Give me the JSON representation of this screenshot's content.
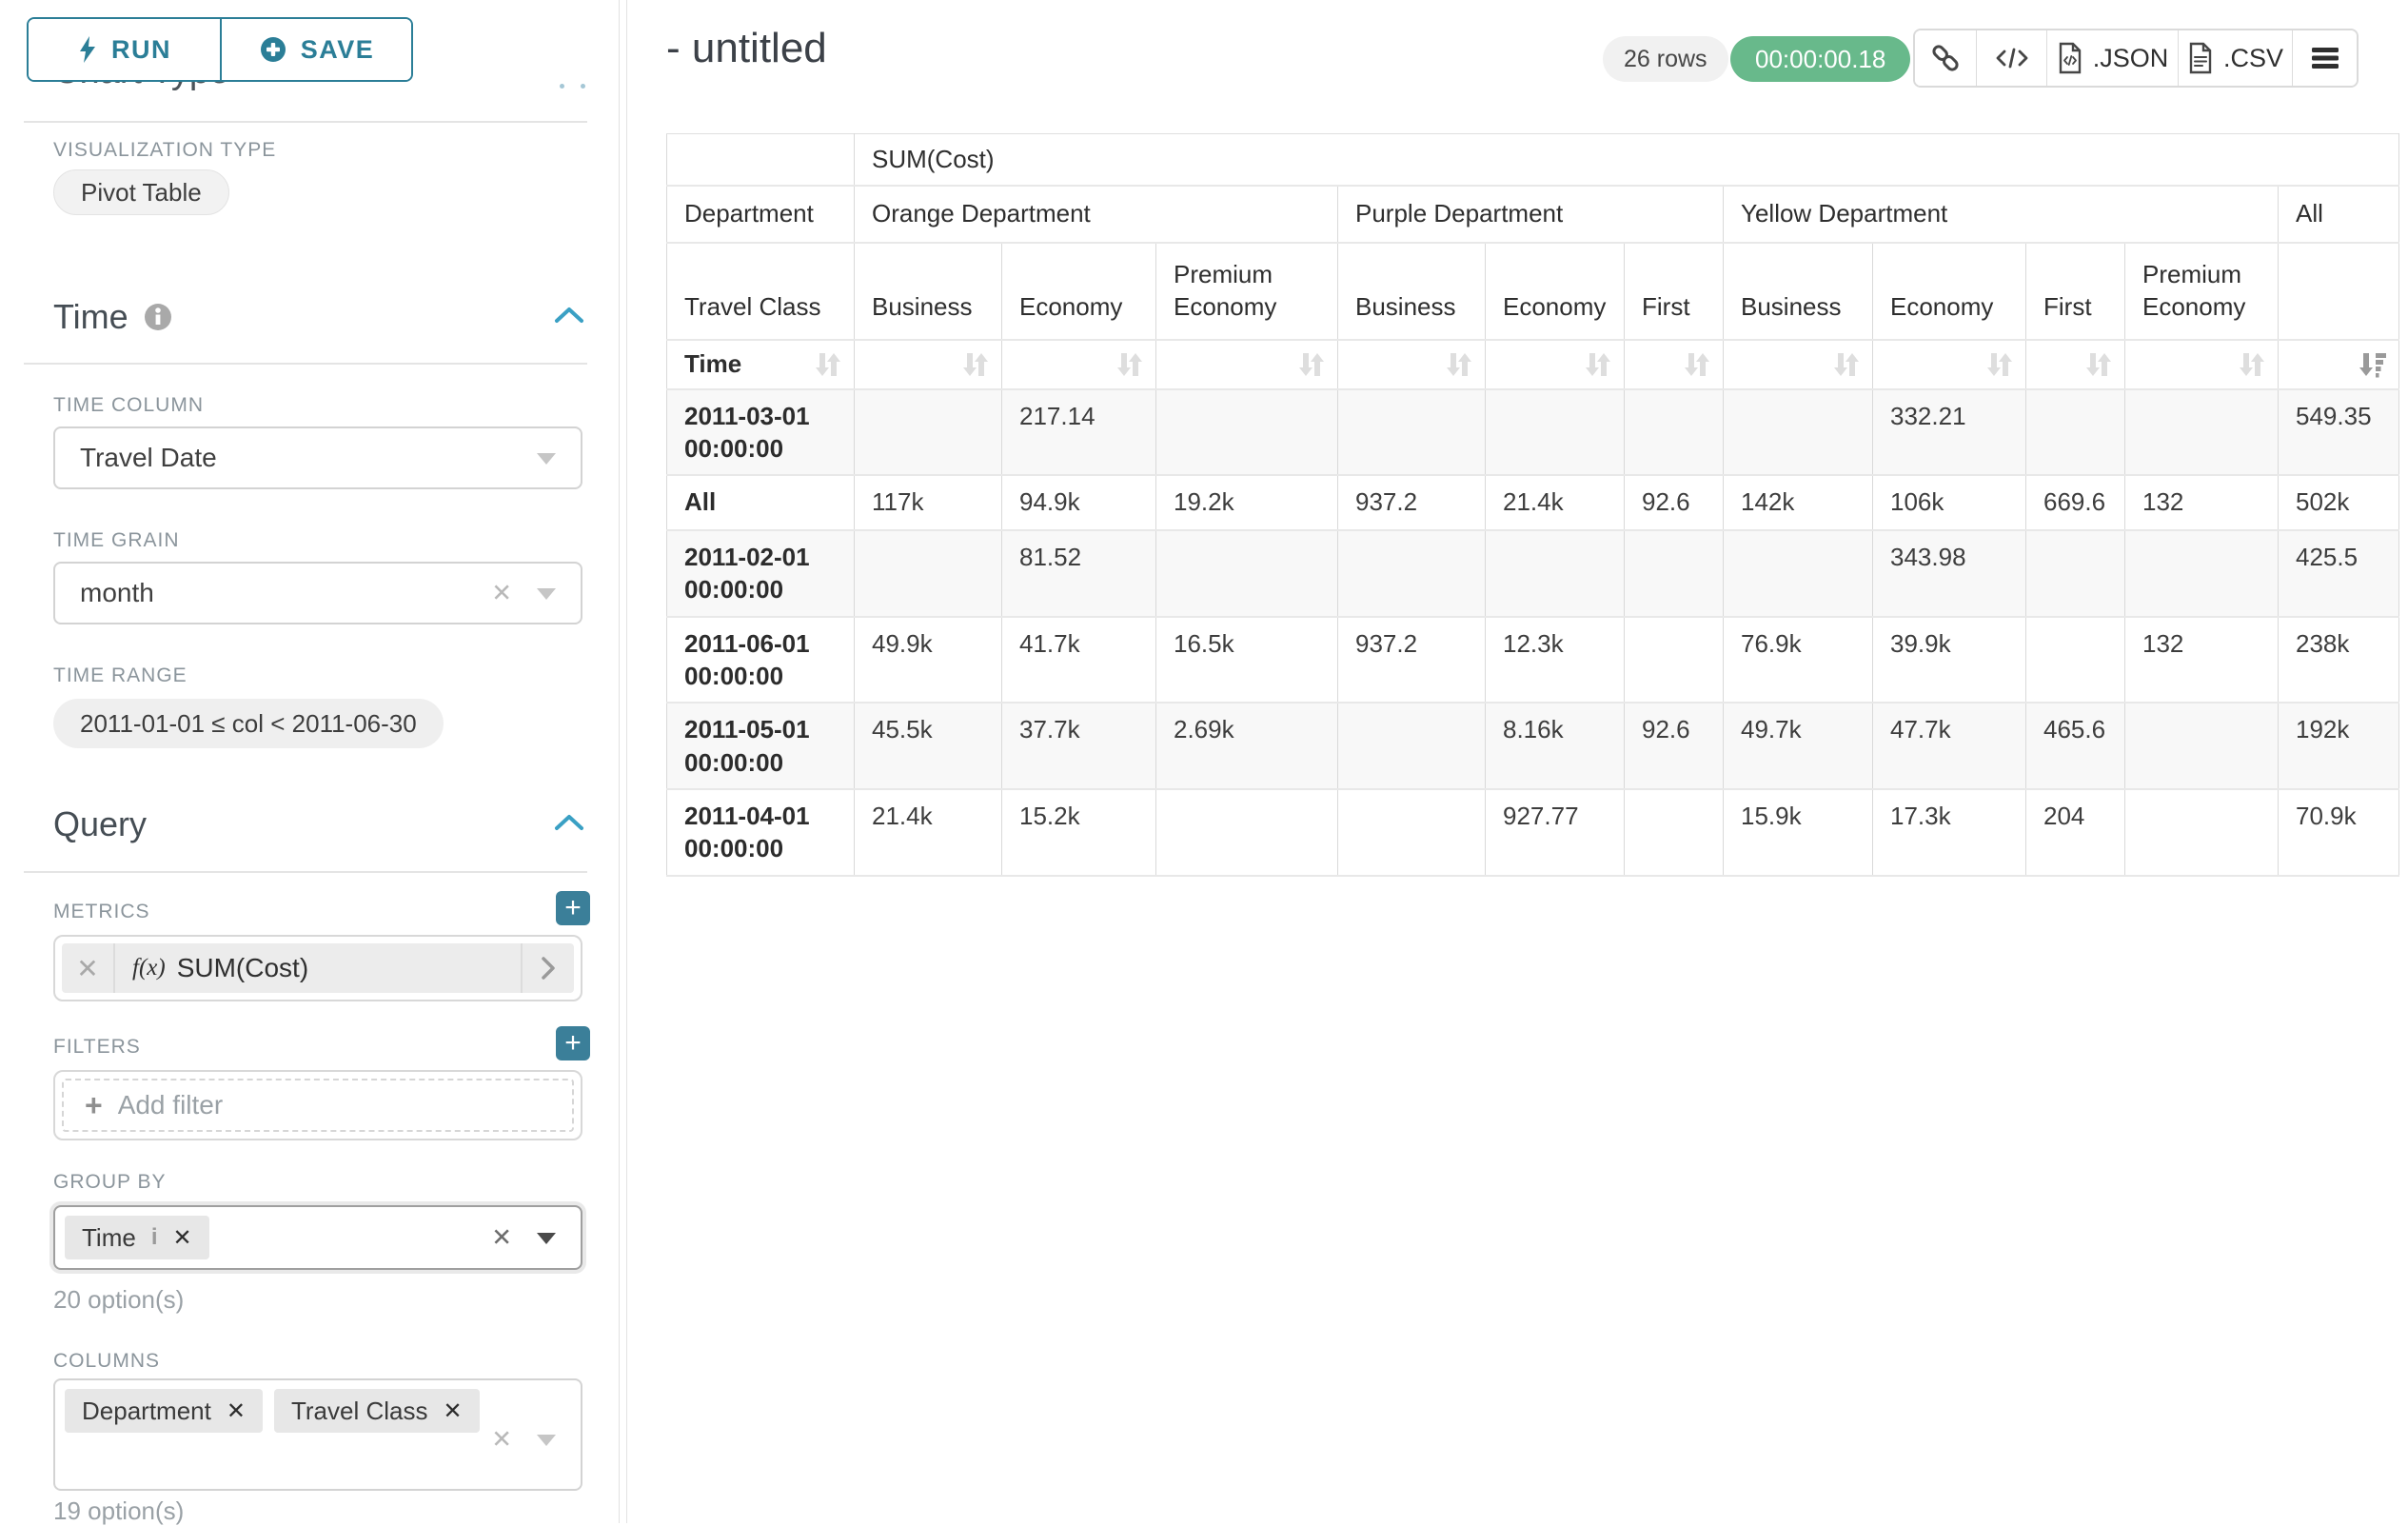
{
  "panel": {
    "run_label": "RUN",
    "save_label": "SAVE",
    "chart_type_title": "Chart Type",
    "viz_label": "VISUALIZATION TYPE",
    "viz_value": "Pivot Table",
    "time": {
      "title": "Time",
      "time_column_label": "TIME COLUMN",
      "time_column_value": "Travel Date",
      "time_grain_label": "TIME GRAIN",
      "time_grain_value": "month",
      "time_range_label": "TIME RANGE",
      "time_range_value": "2011-01-01 ≤ col < 2011-06-30"
    },
    "query": {
      "title": "Query",
      "metrics_label": "METRICS",
      "metric_fx": "f(x)",
      "metric_value": "SUM(Cost)",
      "filters_label": "FILTERS",
      "add_filter_label": "Add filter",
      "group_by": {
        "label": "GROUP BY",
        "tags": [
          {
            "label": "Time",
            "has_info": true
          }
        ],
        "options_text": "20 option(s)"
      },
      "columns": {
        "label": "COLUMNS",
        "tags": [
          {
            "label": "Department"
          },
          {
            "label": "Travel Class"
          }
        ],
        "options_text": "19 option(s)"
      }
    }
  },
  "header": {
    "title": "- untitled",
    "rows_badge": "26 rows",
    "duration_badge": "00:00:00.18",
    "export_json_label": ".JSON",
    "export_csv_label": ".CSV"
  },
  "table": {
    "metric_header": "SUM(Cost)",
    "corner_labels": {
      "department": "Department",
      "travel_class": "Travel Class",
      "time": "Time"
    },
    "department_groups": [
      {
        "label": "Orange Department",
        "span": 3
      },
      {
        "label": "Purple Department",
        "span": 3
      },
      {
        "label": "Yellow Department",
        "span": 4
      },
      {
        "label": "All",
        "span": 1
      }
    ],
    "travel_class_columns": [
      "Business",
      "Economy",
      "Premium Economy",
      "Business",
      "Economy",
      "First",
      "Business",
      "Economy",
      "First",
      "Premium Economy",
      ""
    ],
    "sort": {
      "column": "All",
      "direction": "desc"
    },
    "rows": [
      {
        "label": "2011-03-01 00:00:00",
        "values": [
          "",
          "217.14",
          "",
          "",
          "",
          "",
          "",
          "332.21",
          "",
          "",
          "549.35"
        ]
      },
      {
        "label": "All",
        "values": [
          "117k",
          "94.9k",
          "19.2k",
          "937.2",
          "21.4k",
          "92.6",
          "142k",
          "106k",
          "669.6",
          "132",
          "502k"
        ]
      },
      {
        "label": "2011-02-01 00:00:00",
        "values": [
          "",
          "81.52",
          "",
          "",
          "",
          "",
          "",
          "343.98",
          "",
          "",
          "425.5"
        ]
      },
      {
        "label": "2011-06-01 00:00:00",
        "values": [
          "49.9k",
          "41.7k",
          "16.5k",
          "937.2",
          "12.3k",
          "",
          "76.9k",
          "39.9k",
          "",
          "132",
          "238k"
        ]
      },
      {
        "label": "2011-05-01 00:00:00",
        "values": [
          "45.5k",
          "37.7k",
          "2.69k",
          "",
          "8.16k",
          "92.6",
          "49.7k",
          "47.7k",
          "465.6",
          "",
          "192k"
        ]
      },
      {
        "label": "2011-04-01 00:00:00",
        "values": [
          "21.4k",
          "15.2k",
          "",
          "",
          "927.77",
          "",
          "15.9k",
          "17.3k",
          "204",
          "",
          "70.9k"
        ]
      }
    ]
  },
  "colors": {
    "accent_teal": "#2b7e97",
    "success_green": "#68b98b"
  }
}
